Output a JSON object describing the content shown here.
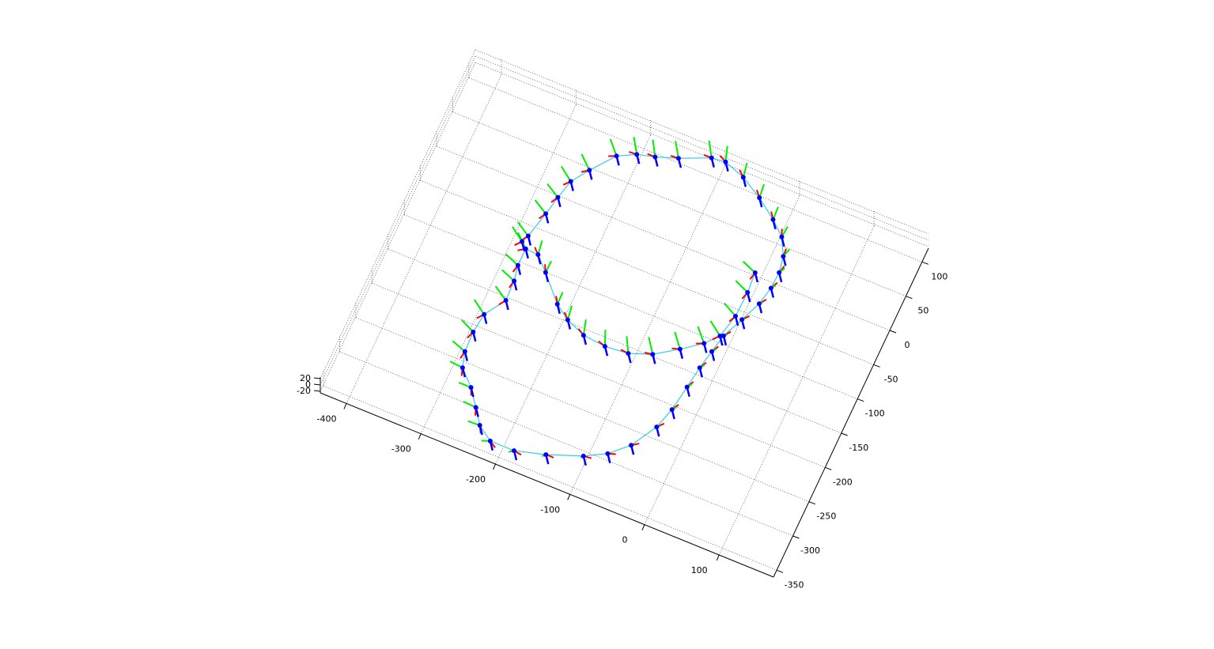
{
  "chart_data": {
    "type": "line3d",
    "x": [
      -5,
      -3,
      -4,
      -11,
      -25,
      -49,
      -77,
      -105,
      -135,
      -165,
      -191,
      -211,
      -241,
      -259,
      -276,
      -276,
      -272,
      -271,
      -288,
      -291,
      -290,
      -284,
      -264,
      -248,
      -234,
      -214,
      -182,
      -144,
      -101,
      -75,
      -53,
      -34,
      -26,
      -21,
      -17,
      -12,
      -7,
      5,
      16,
      21,
      22,
      18,
      6,
      -13,
      -40,
      -69,
      -97,
      -115,
      -152,
      -179,
      -201,
      -223,
      -246,
      -261,
      -267,
      -272,
      -280,
      -284
    ],
    "y": [
      -6,
      -34,
      -69,
      -101,
      -118,
      -137,
      -157,
      -168,
      -171,
      -168,
      -157,
      -143,
      -110,
      -92,
      -91,
      -115,
      -136,
      -164,
      -192,
      -219,
      -247,
      -268,
      -288,
      -310,
      -330,
      -344,
      -344,
      -333,
      -316,
      -301,
      -279,
      -244,
      -215,
      -180,
      -150,
      -124,
      -99,
      -70,
      -42,
      -17,
      6,
      28,
      51,
      68,
      88,
      105,
      115,
      113,
      96,
      86,
      80,
      68,
      37,
      14,
      -12,
      -38,
      -74,
      -84
    ],
    "z": [
      0,
      0,
      0,
      0,
      0,
      0,
      0,
      0,
      0,
      0,
      0,
      0,
      0,
      0,
      0,
      0,
      0,
      0,
      0,
      0,
      0,
      0,
      0,
      0,
      0,
      0,
      0,
      0,
      0,
      0,
      0,
      0,
      0,
      0,
      0,
      0,
      0,
      0,
      0,
      0,
      0,
      0,
      0,
      0,
      0,
      0,
      0,
      0,
      0,
      0,
      0,
      0,
      0,
      0,
      0,
      0,
      0,
      0
    ],
    "line_color": "#33ccee",
    "marker_color": "#0000ff",
    "frame_colors": [
      "#ff0000",
      "#00ee00",
      "#0000ff"
    ],
    "xlim": [
      -435,
      173
    ],
    "ylim": [
      -360,
      120
    ],
    "zlim": [
      -25,
      25
    ],
    "xticks": [
      -400,
      -300,
      -200,
      -100,
      0,
      100
    ],
    "yticks": [
      -350,
      -300,
      -250,
      -200,
      -150,
      -100,
      -50,
      0,
      50,
      100
    ],
    "zticks": [
      -20,
      0,
      20
    ],
    "grid": true
  }
}
